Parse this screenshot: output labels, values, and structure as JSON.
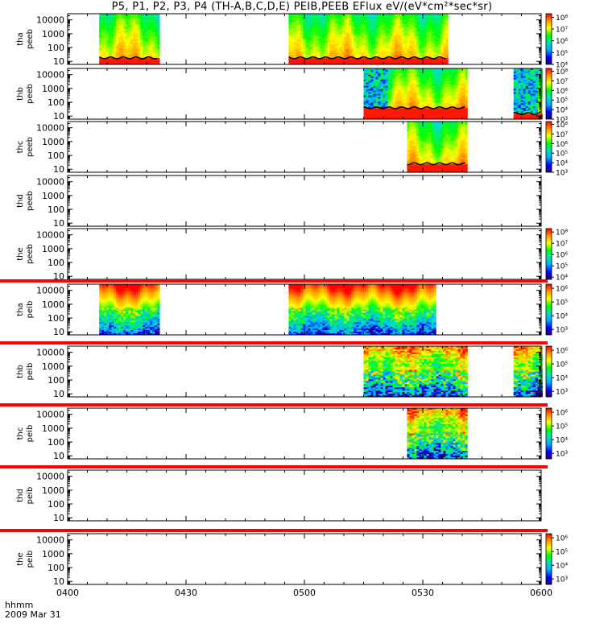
{
  "title": "P5, P1, P2, P3, P4 (TH-A,B,C,D,E) PEIB,PEEB EFlux eV/(eV*cm²*sec*sr)",
  "footer": {
    "hhmm_label": "hhmm",
    "date_label": "2009 Mar 31"
  },
  "colors": {
    "spectrogram_scale": [
      "#2a006e",
      "#0000ff",
      "#00a8ff",
      "#00e0c0",
      "#00ff00",
      "#ffff00",
      "#ff9900",
      "#ff0000"
    ],
    "fill": "#ff0000"
  },
  "chart_data": {
    "type": "heatmap",
    "title": "P5, P1, P2, P3, P4 (TH-A,B,C,D,E) PEIB,PEEB EFlux eV/(eV*cm²*sec*sr)",
    "x_ticks": [
      "0400",
      "0430",
      "0500",
      "0530",
      "0600"
    ],
    "x_range_hhmm": [
      "0400",
      "0600"
    ],
    "y_scale": "log",
    "y_ticks": [
      10,
      100,
      1000,
      10000
    ],
    "panels": [
      {
        "label1": "tha",
        "label2": "peeb",
        "cbar": [
          "10⁴",
          "10⁵",
          "10⁶",
          "10⁷",
          "10⁸"
        ],
        "cbar_range": [
          4,
          8.3
        ],
        "segments": [
          {
            "start": "0408",
            "end": "0423",
            "texture": "electron",
            "floor": 18
          },
          {
            "start": "0456",
            "end": "0536",
            "texture": "electron",
            "floor": 18
          }
        ],
        "red_line": false
      },
      {
        "label1": "thb",
        "label2": "peeb",
        "cbar": [
          "10³",
          "10⁴",
          "10⁵",
          "10⁶",
          "10⁷",
          "10⁸"
        ],
        "cbar_range": [
          3,
          8.3
        ],
        "segments": [
          {
            "start": "0515",
            "end": "0541",
            "texture": "electron_hot",
            "floor": 40
          },
          {
            "start": "0553",
            "end": "0600",
            "texture": "electron_hot",
            "floor": 15
          }
        ],
        "red_line": false
      },
      {
        "label1": "thc",
        "label2": "peeb",
        "cbar": [
          "10³",
          "10⁴",
          "10⁵",
          "10⁶",
          "10⁷",
          "10⁸"
        ],
        "cbar_range": [
          3,
          8.3
        ],
        "segments": [
          {
            "start": "0526",
            "end": "0541",
            "texture": "electron",
            "floor": 25
          }
        ],
        "red_line": false
      },
      {
        "label1": "thd",
        "label2": "peeb",
        "cbar": [],
        "cbar_range": null,
        "segments": [],
        "red_line": false
      },
      {
        "label1": "the",
        "label2": "peeb",
        "cbar": [
          "10⁴",
          "10⁵",
          "10⁶",
          "10⁷",
          "10⁸"
        ],
        "cbar_range": [
          3.8,
          8.3
        ],
        "segments": [],
        "red_line": false
      },
      {
        "label1": "tha",
        "label2": "peib",
        "cbar": [
          "10³",
          "10⁴",
          "10⁵",
          "10⁶"
        ],
        "cbar_range": [
          2.6,
          6.3
        ],
        "segments": [
          {
            "start": "0408",
            "end": "0423",
            "texture": "ion"
          },
          {
            "start": "0456",
            "end": "0533",
            "texture": "ion"
          }
        ],
        "red_line": true
      },
      {
        "label1": "thb",
        "label2": "peib",
        "cbar": [
          "10³",
          "10⁴",
          "10⁵",
          "10⁶"
        ],
        "cbar_range": [
          2.6,
          6.3
        ],
        "segments": [
          {
            "start": "0515",
            "end": "0541",
            "texture": "ion_noisy"
          },
          {
            "start": "0553",
            "end": "0600",
            "texture": "ion_noisy"
          }
        ],
        "red_line": true
      },
      {
        "label1": "thc",
        "label2": "peib",
        "cbar": [
          "10³",
          "10⁴",
          "10⁵",
          "10⁶"
        ],
        "cbar_range": [
          2.6,
          6.3
        ],
        "segments": [
          {
            "start": "0526",
            "end": "0541",
            "texture": "ion_noisy"
          }
        ],
        "red_line": true
      },
      {
        "label1": "thd",
        "label2": "peib",
        "cbar": [],
        "cbar_range": null,
        "segments": [],
        "red_line": true
      },
      {
        "label1": "the",
        "label2": "peib",
        "cbar": [
          "10³",
          "10⁴",
          "10⁵",
          "10⁶"
        ],
        "cbar_range": [
          2.6,
          6.3
        ],
        "segments": [],
        "red_line": true
      }
    ]
  }
}
